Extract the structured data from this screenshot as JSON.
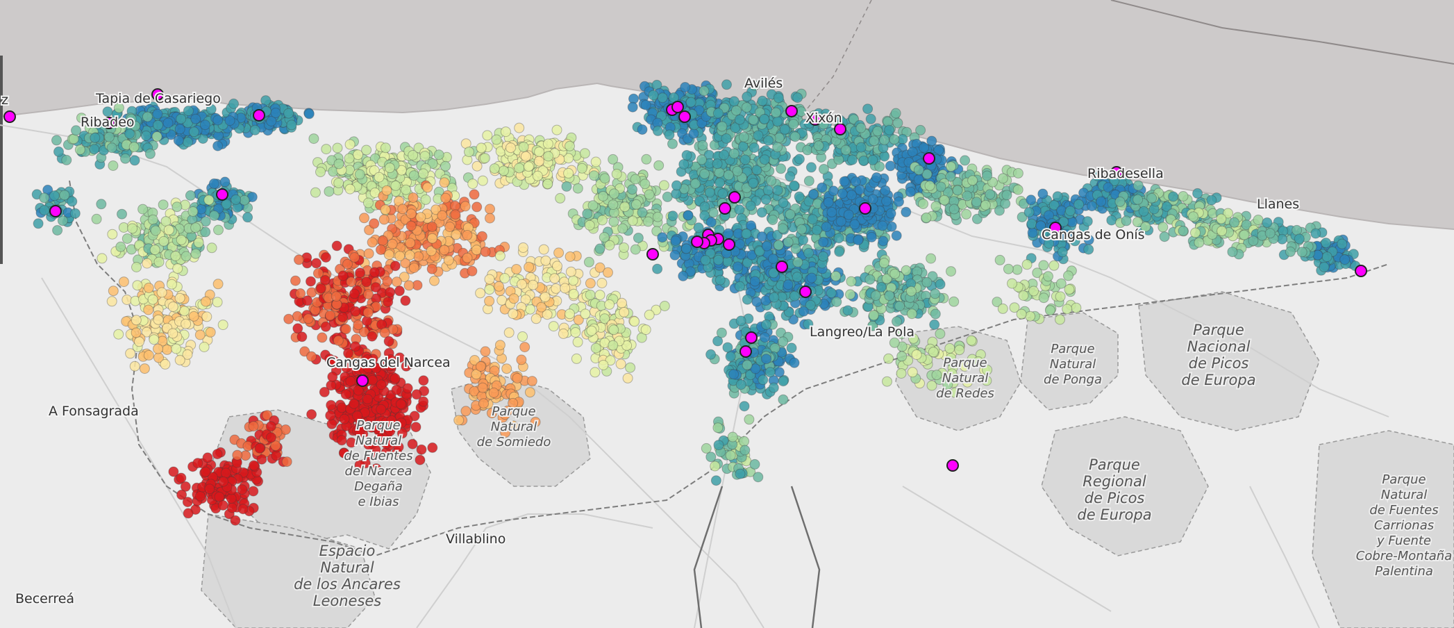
{
  "map": {
    "colors": {
      "sea": "#cdcaca",
      "land": "#ececec",
      "park": "#d9d9d9",
      "coast_dark": "#9a9595",
      "poi": "#ff00ff",
      "scale": [
        "#2b83ba",
        "#3fa0a8",
        "#6cb9a1",
        "#9fd59e",
        "#c7e89e",
        "#e6f2a5",
        "#fbe6a0",
        "#fdbf6f",
        "#f99a57",
        "#ee6a3e",
        "#d7191c"
      ]
    },
    "places": [
      {
        "id": "place-tapia",
        "text": "Tapia de Casariego"
      },
      {
        "id": "place-ribadeo",
        "text": "Ribadeo"
      },
      {
        "id": "place-z",
        "text": "z"
      },
      {
        "id": "place-fonsagrada",
        "text": "A Fonsagrada"
      },
      {
        "id": "place-villablino",
        "text": "Villablino"
      },
      {
        "id": "place-becerrea",
        "text": "Becerreá"
      },
      {
        "id": "place-xixon",
        "text": "Xixón"
      },
      {
        "id": "place-aviles",
        "text": "Avilés"
      },
      {
        "id": "place-llanes",
        "text": "Llanes"
      },
      {
        "id": "place-ribadesella",
        "text": "Ribadesella"
      },
      {
        "id": "place-cangas-onis",
        "text": "Cangas de Onís"
      },
      {
        "id": "place-cangas-narcea",
        "text": "Cangas del Narcea"
      },
      {
        "id": "place-langreo",
        "text": "Langreo/La Pola"
      }
    ],
    "parks": [
      {
        "id": "park-fuentes-narcea",
        "lines": [
          "Parque",
          "Natural",
          "de Fuentes",
          "del Narcea",
          "Degaña",
          "e Ibias"
        ]
      },
      {
        "id": "park-somiedo",
        "lines": [
          "Parque",
          "Natural",
          "de Somiedo"
        ]
      },
      {
        "id": "park-redes",
        "lines": [
          "Parque",
          "Natural",
          "de Redes"
        ]
      },
      {
        "id": "park-ponga",
        "lines": [
          "Parque",
          "Natural",
          "de Ponga"
        ]
      },
      {
        "id": "park-picos-nacional",
        "lines": [
          "Parque",
          "Nacional",
          "de Picos",
          "de Europa"
        ]
      },
      {
        "id": "park-picos-regional",
        "lines": [
          "Parque",
          "Regional",
          "de Picos",
          "de Europa"
        ]
      },
      {
        "id": "park-ancares",
        "lines": [
          "Espacio",
          "Natural",
          "de los Ancares",
          "Leoneses"
        ]
      },
      {
        "id": "park-fuentes-carrionas",
        "lines": [
          "Parque",
          "Natural",
          "de Fuentes",
          "Carrionas",
          "y Fuente",
          "Cobre-Montaña",
          "Palentina"
        ]
      }
    ],
    "poi_count_note": "magenta highlighted points"
  }
}
